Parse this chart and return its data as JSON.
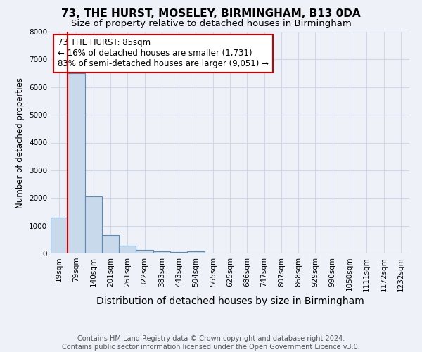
{
  "title": "73, THE HURST, MOSELEY, BIRMINGHAM, B13 0DA",
  "subtitle": "Size of property relative to detached houses in Birmingham",
  "xlabel": "Distribution of detached houses by size in Birmingham",
  "ylabel": "Number of detached properties",
  "categories": [
    "19sqm",
    "79sqm",
    "140sqm",
    "201sqm",
    "261sqm",
    "322sqm",
    "383sqm",
    "443sqm",
    "504sqm",
    "565sqm",
    "625sqm",
    "686sqm",
    "747sqm",
    "807sqm",
    "868sqm",
    "929sqm",
    "990sqm",
    "1050sqm",
    "1111sqm",
    "1172sqm",
    "1232sqm"
  ],
  "values": [
    1300,
    6500,
    2050,
    650,
    280,
    120,
    80,
    50,
    70,
    0,
    0,
    0,
    0,
    0,
    0,
    0,
    0,
    0,
    0,
    0,
    0
  ],
  "bar_color": "#c9d9ec",
  "bar_edge_color": "#5b8ab5",
  "bar_edge_width": 0.8,
  "grid_color": "#d0d8e8",
  "background_color": "#eef2f8",
  "ylim": [
    0,
    8000
  ],
  "annotation_text": "73 THE HURST: 85sqm\n← 16% of detached houses are smaller (1,731)\n83% of semi-detached houses are larger (9,051) →",
  "annotation_box_color": "#ffffff",
  "annotation_border_color": "#cc0000",
  "red_line_color": "#cc0000",
  "footer_text": "Contains HM Land Registry data © Crown copyright and database right 2024.\nContains public sector information licensed under the Open Government Licence v3.0.",
  "title_fontsize": 11,
  "subtitle_fontsize": 9.5,
  "xlabel_fontsize": 10,
  "ylabel_fontsize": 8.5,
  "tick_fontsize": 7.5,
  "annotation_fontsize": 8.5,
  "footer_fontsize": 7
}
